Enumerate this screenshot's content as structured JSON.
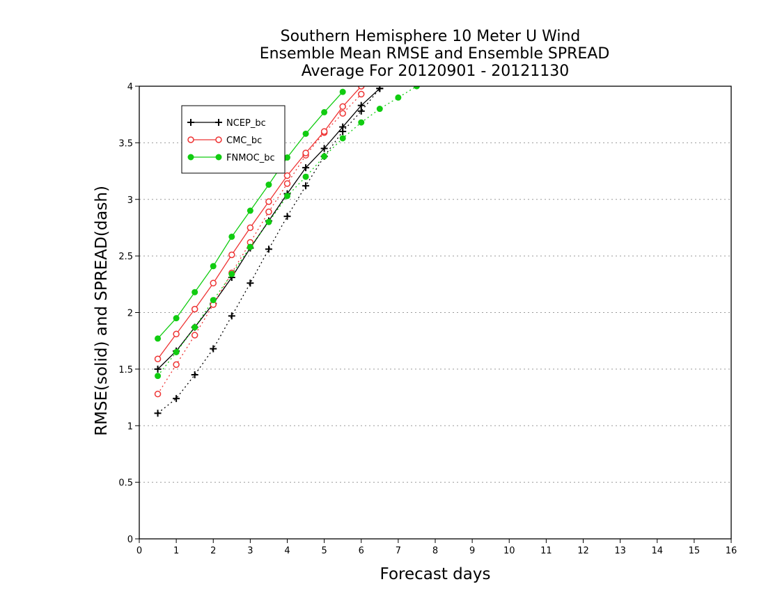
{
  "chart_data": {
    "type": "line",
    "title": [
      "Southern Hemisphere 10 Meter U Wind",
      "Ensemble Mean RMSE and Ensemble SPREAD",
      "Average For 20120901 - 20121130"
    ],
    "xlabel": "Forecast days",
    "ylabel": "RMSE(solid) and SPREAD(dash)",
    "xlim": [
      0,
      16
    ],
    "ylim": [
      0,
      4
    ],
    "x_ticks": [
      "0",
      "1",
      "2",
      "3",
      "4",
      "5",
      "6",
      "7",
      "8",
      "9",
      "10",
      "11",
      "12",
      "13",
      "14",
      "15",
      "16"
    ],
    "y_ticks": [
      "0",
      "0.5",
      "1",
      "1.5",
      "2",
      "2.5",
      "3",
      "3.5",
      "4"
    ],
    "grid": "horizontal dotted",
    "legend_position": "top-left",
    "series": [
      {
        "name": "NCEP_bc",
        "color": "#000000",
        "marker": "plus",
        "rmse": {
          "x": [
            0.5,
            1,
            1.5,
            2,
            2.5,
            3,
            3.5,
            4,
            4.5,
            5,
            5.5,
            6,
            6.5
          ],
          "y": [
            1.5,
            1.66,
            1.87,
            2.08,
            2.31,
            2.57,
            2.81,
            3.05,
            3.28,
            3.45,
            3.64,
            3.83,
            3.98
          ]
        },
        "spread": {
          "x": [
            0.5,
            1,
            1.5,
            2,
            2.5,
            3,
            3.5,
            4,
            4.5,
            5,
            5.5,
            6,
            6.5
          ],
          "y": [
            1.11,
            1.24,
            1.45,
            1.68,
            1.97,
            2.26,
            2.56,
            2.85,
            3.12,
            3.38,
            3.6,
            3.78,
            3.98
          ]
        }
      },
      {
        "name": "CMC_bc",
        "color": "#ee3333",
        "marker": "open-circle",
        "rmse": {
          "x": [
            0.5,
            1,
            1.5,
            2,
            2.5,
            3,
            3.5,
            4,
            4.5,
            5,
            5.5,
            6
          ],
          "y": [
            1.59,
            1.81,
            2.03,
            2.26,
            2.51,
            2.75,
            2.98,
            3.21,
            3.41,
            3.6,
            3.82,
            4.0
          ]
        },
        "spread": {
          "x": [
            0.5,
            1,
            1.5,
            2,
            2.5,
            3,
            3.5,
            4,
            4.5,
            5,
            5.5,
            6
          ],
          "y": [
            1.28,
            1.54,
            1.8,
            2.07,
            2.35,
            2.62,
            2.89,
            3.14,
            3.39,
            3.59,
            3.76,
            3.93
          ]
        }
      },
      {
        "name": "FNMOC_bc",
        "color": "#11cc11",
        "marker": "filled-circle",
        "rmse": {
          "x": [
            0.5,
            1,
            1.5,
            2,
            2.5,
            3,
            3.5,
            4,
            4.5,
            5,
            5.5
          ],
          "y": [
            1.77,
            1.95,
            2.18,
            2.41,
            2.67,
            2.9,
            3.13,
            3.37,
            3.58,
            3.77,
            3.95
          ]
        },
        "spread": {
          "x": [
            0.5,
            1,
            1.5,
            2,
            2.5,
            3,
            3.5,
            4,
            4.5,
            5,
            5.5,
            6,
            6.5,
            7,
            7.5
          ],
          "y": [
            1.44,
            1.65,
            1.87,
            2.11,
            2.34,
            2.58,
            2.8,
            3.03,
            3.2,
            3.38,
            3.54,
            3.68,
            3.8,
            3.9,
            4.0
          ]
        }
      }
    ]
  }
}
